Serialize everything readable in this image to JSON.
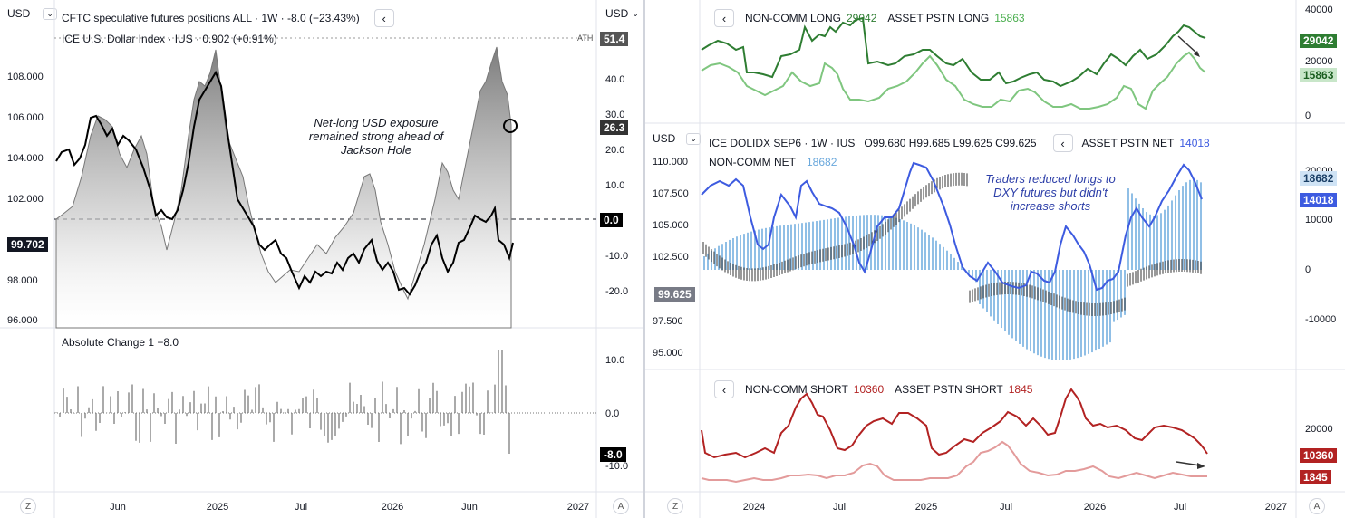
{
  "left": {
    "currency": "USD",
    "currency_right": "USD",
    "legend_main": "CFTC speculative futures positions ALL · 1W · -8.0 (−23.43%)",
    "legend_sub": "ICE U.S. Dollar Index · IUS · 0.902 (+0.91%)",
    "ath_label": "ATH",
    "annotation": "Net-long USD exposure remained strong ahead of Jackson Hole",
    "price_left": "99.702",
    "tag_ath": "51.4",
    "tag_last": "26.3",
    "tag_zero": "0.0",
    "lower_legend": "Absolute Change 1  −8.0",
    "tag_change": "-8.0",
    "time_labels": [
      "Jun",
      "2025",
      "Jul",
      "2026",
      "Jun",
      "2027"
    ],
    "btn_z": "Z",
    "btn_a": "A"
  },
  "right": {
    "top_legend_long": "NON-COMM LONG",
    "top_value_long": "29042",
    "top_legend_asset": "ASSET PSTN LONG",
    "top_value_asset": "15863",
    "mid_currency": "USD",
    "mid_legend": "ICE DOLIDX SEP6 · 1W · IUS",
    "mid_ohlc": "O99.680  H99.685  L99.625  C99.625",
    "mid_asset_net": "ASSET PSTN NET",
    "mid_asset_net_value": "14018",
    "mid_noncomm_net": "NON-COMM NET",
    "mid_noncomm_net_value": "18682",
    "mid_annotation": "Traders reduced longs to DXY futures but didn't increase shorts",
    "mid_price_tag": "99.625",
    "bot_legend_short": "NON-COMM SHORT",
    "bot_value_short": "10360",
    "bot_legend_asset": "ASSET PSTN SHORT",
    "bot_value_asset": "1845",
    "tag_top_long": "29042",
    "tag_top_asset": "15863",
    "tag_mid_noncomm": "18682",
    "tag_mid_asset": "14018",
    "tag_bot_short": "10360",
    "tag_bot_asset": "1845",
    "time_labels": [
      "2024",
      "Jul",
      "2025",
      "Jul",
      "2026",
      "Jul",
      "2027"
    ],
    "btn_z": "Z",
    "btn_a": "A"
  },
  "colors": {
    "dark_green": "#2e7d32",
    "light_green": "#81c784",
    "blue": "#3d5be0",
    "light_blue": "#90bfe6",
    "dark_red": "#b22222",
    "light_red": "#e39b9b",
    "candle": "#333333"
  },
  "chart_data": [
    {
      "type": "line",
      "title": "CFTC speculative futures positions ALL vs ICE U.S. Dollar Index",
      "x": [
        "2024-04",
        "2024-06",
        "2024-09",
        "2024-12",
        "2025-01",
        "2025-04",
        "2025-07",
        "2025-10",
        "2026-01",
        "2026-04",
        "2026-06",
        "2026-08"
      ],
      "series": [
        {
          "name": "CFTC speculative futures positions ALL",
          "values": [
            -2,
            35,
            18,
            30,
            45,
            10,
            -15,
            -10,
            8,
            -12,
            40,
            26.3
          ]
        },
        {
          "name": "ICE U.S. Dollar Index",
          "values": [
            104.0,
            106.5,
            104.0,
            107.5,
            109.0,
            102.0,
            97.0,
            98.5,
            97.5,
            97.0,
            100.5,
            99.7
          ]
        }
      ],
      "y_right_range": [
        -25,
        55
      ],
      "y_left_range": [
        96,
        110
      ],
      "reference_lines": [
        0
      ]
    },
    {
      "type": "bar",
      "title": "Absolute Change 1",
      "values_range": [
        -15,
        15
      ],
      "last_value": -8.0
    },
    {
      "type": "line",
      "series": [
        {
          "name": "NON-COMM LONG",
          "values": [
            26000,
            30000,
            25000,
            38000,
            24000,
            22000,
            26000,
            24000,
            22000,
            24000,
            40000,
            29042
          ]
        },
        {
          "name": "ASSET PSTN LONG",
          "values": [
            14000,
            16000,
            10000,
            12000,
            11000,
            18000,
            8000,
            6000,
            12000,
            6000,
            22000,
            15863
          ]
        }
      ],
      "y_ticks": [
        0,
        20000,
        40000
      ]
    },
    {
      "type": "line",
      "title": "ICE DOLIDX SEP6",
      "series": [
        {
          "name": "ASSET PSTN NET",
          "values": [
            18000,
            5000,
            10000,
            20000,
            10000,
            -8000,
            -6000,
            2000,
            -8000,
            10000,
            22000,
            14018
          ]
        },
        {
          "name": "NON-COMM NET",
          "values": [
            20000,
            8000,
            12000,
            22000,
            14000,
            -6000,
            -10000,
            -6000,
            -12000,
            14000,
            24000,
            18682
          ]
        }
      ],
      "y_left_ticks": [
        95.0,
        97.5,
        100.0,
        102.5,
        105.0,
        107.5,
        110.0
      ],
      "y_right_ticks": [
        -10000,
        0,
        10000
      ],
      "last_price": 99.625
    },
    {
      "type": "line",
      "series": [
        {
          "name": "NON-COMM SHORT",
          "values": [
            14000,
            11000,
            24000,
            13000,
            17000,
            12000,
            16000,
            28000,
            15000,
            18000,
            20000,
            10360
          ]
        },
        {
          "name": "ASSET PSTN SHORT",
          "values": [
            3000,
            2000,
            2500,
            5000,
            2000,
            1800,
            6000,
            9000,
            2500,
            3000,
            2500,
            1845
          ]
        }
      ],
      "y_ticks": [
        10000,
        20000
      ]
    }
  ]
}
